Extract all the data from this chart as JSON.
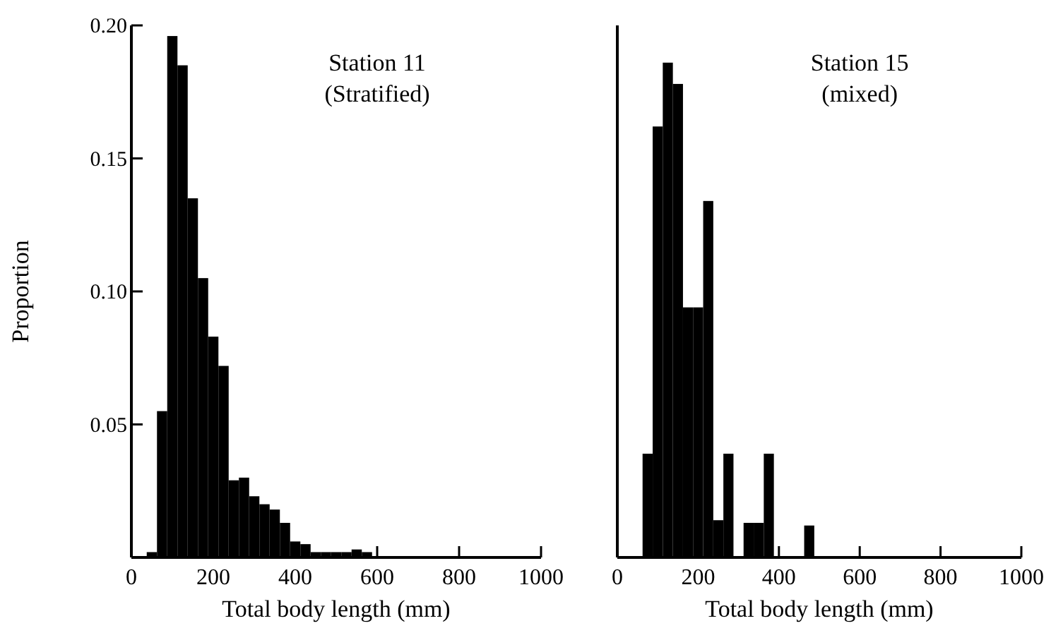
{
  "chart_data": [
    {
      "type": "histogram",
      "title": "Station 11",
      "subtitle": "(Stratified)",
      "xlabel": "Total body length (mm)",
      "ylabel": "Proportion",
      "color": "#000000",
      "bins": [
        37.5,
        62.5,
        87.5,
        112.5,
        137.5,
        162.5,
        187.5,
        212.5,
        237.5,
        262.5,
        287.5,
        312.5,
        337.5,
        362.5,
        387.5,
        412.5,
        437.5,
        462.5,
        487.5,
        512.5,
        537.5,
        562.5,
        587.5
      ],
      "values": [
        0.002,
        0.055,
        0.196,
        0.185,
        0.135,
        0.105,
        0.083,
        0.072,
        0.029,
        0.03,
        0.023,
        0.02,
        0.018,
        0.013,
        0.006,
        0.005,
        0.002,
        0.002,
        0.002,
        0.002,
        0.003,
        0.002
      ],
      "xlim": [
        0,
        1000
      ],
      "xticks": [
        0,
        200,
        400,
        600,
        800,
        1000
      ],
      "ylim": [
        0,
        0.2
      ],
      "yticks": [
        0.05,
        {
          "value": 0.1,
          "label": "0.10"
        },
        0.15,
        {
          "value": 0.2,
          "label": "0.20"
        }
      ]
    },
    {
      "type": "histogram",
      "title": "Station 15",
      "subtitle": "(mixed)",
      "xlabel": "Total body length (mm)",
      "color": "#000000",
      "bins": [
        62.5,
        87.5,
        112.5,
        137.5,
        162.5,
        187.5,
        212.5,
        237.5,
        262.5,
        287.5,
        312.5,
        337.5,
        362.5,
        387.5,
        412.5,
        437.5,
        462.5,
        487.5
      ],
      "values": [
        0.039,
        0.162,
        0.186,
        0.178,
        0.094,
        0.094,
        0.134,
        0.014,
        0.039,
        0,
        0.013,
        0.013,
        0.039,
        0,
        0,
        0,
        0.012
      ],
      "xlim": [
        0,
        1000
      ],
      "xticks": [
        0,
        200,
        400,
        600,
        800,
        1000
      ],
      "ylim": [
        0,
        0.2
      ],
      "tick_labels": "x"
    }
  ]
}
